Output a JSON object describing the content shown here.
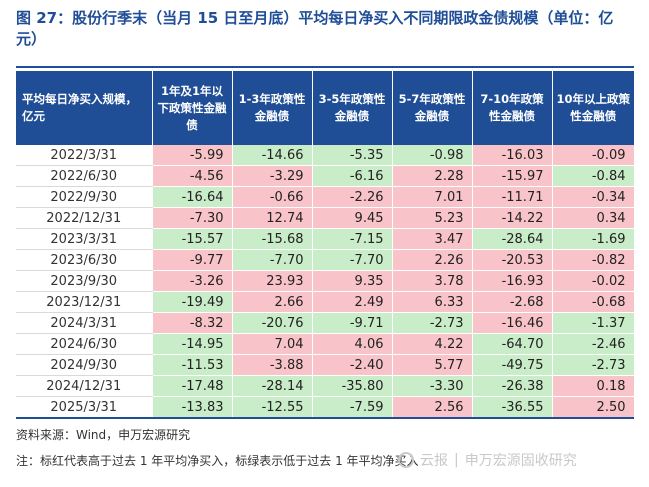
{
  "title": "图 27：股份行季末（当月 15 日至月底）平均每日净买入不同期限政金债规模（单位：亿元）",
  "table": {
    "headers": [
      "平均每日净买入规模，亿元",
      "1年及1年以下政策性金融债",
      "1-3年政策性金融债",
      "3-5年政策性金融债",
      "5-7年政策性金融债",
      "7-10年政策性金融债",
      "10年以上政策性金融债"
    ],
    "rows": [
      {
        "date": "2022/3/31",
        "values": [
          "-5.99",
          "-14.66",
          "-5.35",
          "-0.98",
          "-16.03",
          "-0.09"
        ],
        "colors": [
          "pos",
          "neg",
          "neg",
          "neg",
          "pos",
          "pos"
        ]
      },
      {
        "date": "2022/6/30",
        "values": [
          "-4.56",
          "-3.29",
          "-6.16",
          "2.28",
          "-15.97",
          "-0.84"
        ],
        "colors": [
          "pos",
          "pos",
          "neg",
          "pos",
          "pos",
          "neg"
        ]
      },
      {
        "date": "2022/9/30",
        "values": [
          "-16.64",
          "-0.66",
          "-2.26",
          "7.01",
          "-11.71",
          "-0.34"
        ],
        "colors": [
          "neg",
          "pos",
          "pos",
          "pos",
          "pos",
          "pos"
        ]
      },
      {
        "date": "2022/12/31",
        "values": [
          "-7.30",
          "12.74",
          "9.45",
          "5.23",
          "-14.22",
          "0.34"
        ],
        "colors": [
          "pos",
          "pos",
          "pos",
          "pos",
          "pos",
          "pos"
        ]
      },
      {
        "date": "2023/3/31",
        "values": [
          "-15.57",
          "-15.68",
          "-7.15",
          "3.47",
          "-28.64",
          "-1.69"
        ],
        "colors": [
          "neg",
          "neg",
          "neg",
          "pos",
          "neg",
          "neg"
        ]
      },
      {
        "date": "2023/6/30",
        "values": [
          "-9.77",
          "-7.70",
          "-7.70",
          "2.26",
          "-20.53",
          "-0.82"
        ],
        "colors": [
          "pos",
          "neg",
          "neg",
          "pos",
          "pos",
          "pos"
        ]
      },
      {
        "date": "2023/9/30",
        "values": [
          "-3.26",
          "23.93",
          "9.35",
          "3.78",
          "-16.93",
          "-0.02"
        ],
        "colors": [
          "pos",
          "pos",
          "pos",
          "pos",
          "pos",
          "pos"
        ]
      },
      {
        "date": "2023/12/31",
        "values": [
          "-19.49",
          "2.66",
          "2.49",
          "6.33",
          "-2.68",
          "-0.68"
        ],
        "colors": [
          "neg",
          "pos",
          "pos",
          "pos",
          "pos",
          "pos"
        ]
      },
      {
        "date": "2024/3/31",
        "values": [
          "-8.32",
          "-20.76",
          "-9.71",
          "-2.73",
          "-16.46",
          "-1.37"
        ],
        "colors": [
          "pos",
          "neg",
          "neg",
          "neg",
          "pos",
          "neg"
        ]
      },
      {
        "date": "2024/6/30",
        "values": [
          "-14.95",
          "7.04",
          "4.06",
          "4.22",
          "-64.70",
          "-2.46"
        ],
        "colors": [
          "neg",
          "pos",
          "pos",
          "pos",
          "neg",
          "neg"
        ]
      },
      {
        "date": "2024/9/30",
        "values": [
          "-11.53",
          "-3.88",
          "-2.40",
          "5.77",
          "-49.75",
          "-2.73"
        ],
        "colors": [
          "neg",
          "pos",
          "pos",
          "pos",
          "neg",
          "neg"
        ]
      },
      {
        "date": "2024/12/31",
        "values": [
          "-17.48",
          "-28.14",
          "-35.80",
          "-3.30",
          "-26.38",
          "0.18"
        ],
        "colors": [
          "neg",
          "neg",
          "neg",
          "neg",
          "neg",
          "pos"
        ]
      },
      {
        "date": "2025/3/31",
        "values": [
          "-13.83",
          "-12.55",
          "-7.59",
          "2.56",
          "-36.55",
          "2.50"
        ],
        "colors": [
          "neg",
          "neg",
          "neg",
          "pos",
          "neg",
          "pos"
        ]
      }
    ]
  },
  "colors": {
    "header": "#1f4e96",
    "pos": "#f9c4c9",
    "neg": "#c9ecc9"
  },
  "source": "资料来源：Wind，申万宏源研究",
  "note": "注：标红代表高于过去 1 年平均净买入，标绿表示低于过去 1 年平均净买入",
  "watermark": {
    "account": "云报",
    "brand": "申万宏源固收研究"
  }
}
